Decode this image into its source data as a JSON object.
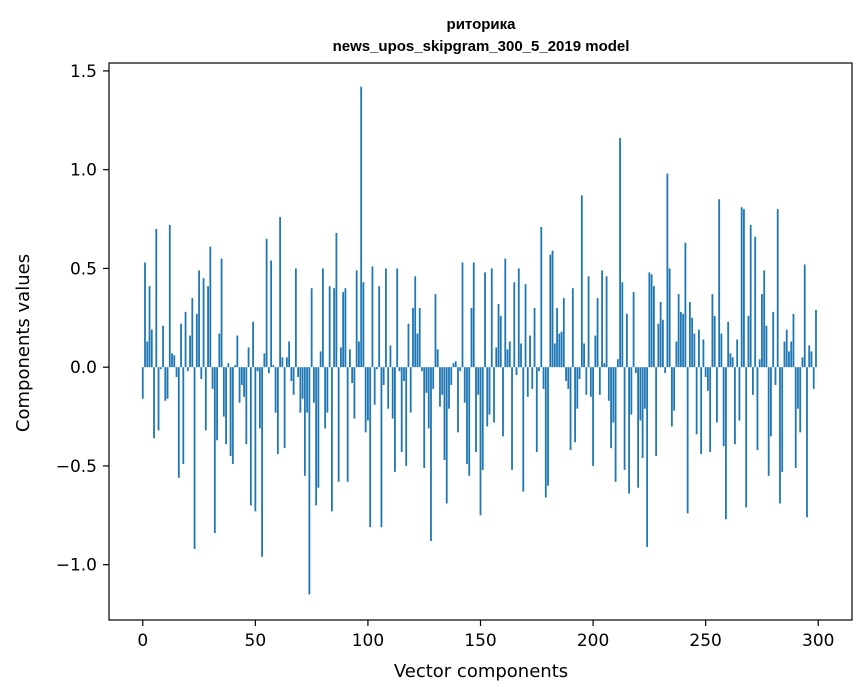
{
  "chart_data": {
    "type": "bar",
    "title": "риторика",
    "subtitle": "news_upos_skipgram_300_5_2019 model",
    "xlabel": "Vector components",
    "ylabel": "Components values",
    "xlim": [
      -15,
      315
    ],
    "ylim": [
      -1.28,
      1.54
    ],
    "xticks": [
      0,
      50,
      100,
      150,
      200,
      250,
      300
    ],
    "xtick_labels": [
      "0",
      "50",
      "100",
      "150",
      "200",
      "250",
      "300"
    ],
    "yticks": [
      -1.0,
      -0.5,
      0.0,
      0.5,
      1.0,
      1.5
    ],
    "ytick_labels": [
      "−1.0",
      "−0.5",
      "0.0",
      "0.5",
      "1.0",
      "1.5"
    ],
    "bar_color": "#1f77b4",
    "grid": false,
    "values": [
      -0.16,
      0.53,
      0.13,
      0.41,
      0.19,
      -0.36,
      0.7,
      -0.32,
      -0.01,
      0.21,
      -0.17,
      -0.16,
      0.72,
      0.07,
      0.06,
      -0.05,
      -0.56,
      0.22,
      -0.49,
      0.28,
      -0.02,
      0.16,
      0.35,
      -0.92,
      0.27,
      0.49,
      -0.06,
      0.45,
      -0.32,
      0.41,
      0.61,
      -0.11,
      -0.84,
      -0.37,
      0.17,
      0.55,
      -0.25,
      -0.39,
      0.02,
      -0.45,
      -0.49,
      0.01,
      0.16,
      -0.18,
      -0.09,
      -0.15,
      -0.39,
      0.1,
      -0.7,
      0.23,
      -0.73,
      -0.02,
      -0.31,
      -0.96,
      0.07,
      0.65,
      -0.03,
      0.54,
      0.01,
      -0.23,
      -0.44,
      0.76,
      0.05,
      -0.41,
      0.05,
      0.13,
      -0.07,
      -0.14,
      0.5,
      -0.05,
      -0.23,
      -0.16,
      -0.55,
      -0.23,
      -1.15,
      0.4,
      -0.18,
      -0.7,
      -0.61,
      0.08,
      0.5,
      -0.31,
      -0.23,
      0.41,
      -0.73,
      0.4,
      0.68,
      -0.58,
      0.1,
      0.38,
      0.4,
      -0.58,
      0.09,
      -0.08,
      -0.26,
      0.49,
      0.13,
      1.42,
      0.43,
      -0.33,
      -0.27,
      -0.81,
      0.51,
      -0.19,
      -0.01,
      0.41,
      -0.81,
      -0.09,
      0.5,
      -0.21,
      0.11,
      -0.26,
      -0.53,
      0.5,
      -0.02,
      -0.43,
      -0.07,
      -0.5,
      0.22,
      -0.23,
      0.3,
      0.46,
      0.17,
      0.3,
      -0.02,
      -0.51,
      -0.13,
      -0.31,
      -0.88,
      -0.11,
      0.37,
      0.09,
      -0.2,
      -0.14,
      -0.47,
      -0.69,
      -0.21,
      -0.09,
      0.02,
      0.03,
      -0.33,
      -0.02,
      0.53,
      -0.18,
      -0.49,
      -0.55,
      0.3,
      0.53,
      -0.43,
      -0.14,
      -0.75,
      -0.52,
      0.48,
      -0.3,
      -0.24,
      0.5,
      -0.28,
      0.1,
      0.32,
      0.26,
      -0.35,
      0.55,
      0.09,
      0.13,
      -0.52,
      0.43,
      -0.04,
      0.5,
      0.12,
      -0.63,
      0.42,
      -0.15,
      0.16,
      -0.11,
      0.3,
      -0.43,
      -0.02,
      0.71,
      -0.11,
      -0.66,
      -0.6,
      0.57,
      0.59,
      0.12,
      0.3,
      0.17,
      0.18,
      0.35,
      -0.07,
      -0.11,
      -0.42,
      0.4,
      -0.38,
      -0.21,
      -0.06,
      0.87,
      0.12,
      -0.14,
      0.46,
      -0.15,
      -0.5,
      0.16,
      0.35,
      -0.14,
      0.49,
      0.02,
      0.46,
      -0.17,
      -0.41,
      -0.28,
      -0.58,
      0.04,
      1.16,
      0.43,
      -0.52,
      0.27,
      -0.64,
      -0.24,
      0.38,
      -0.03,
      -0.61,
      -0.27,
      -0.46,
      -0.21,
      -0.91,
      0.48,
      0.47,
      0.41,
      -0.45,
      0.22,
      0.33,
      0.24,
      -0.03,
      0.98,
      0.5,
      -0.3,
      -0.22,
      0.13,
      0.37,
      0.28,
      0.27,
      0.63,
      -0.74,
      0.33,
      0.25,
      0.17,
      -0.34,
      0.19,
      -0.44,
      0.14,
      -0.05,
      -0.12,
      -0.43,
      0.37,
      0.26,
      -0.28,
      0.85,
      0.17,
      -0.4,
      -0.77,
      0.23,
      0.07,
      0.05,
      -0.39,
      0.14,
      -0.27,
      0.81,
      0.8,
      -0.71,
      0.26,
      0.72,
      -0.14,
      0.66,
      -0.42,
      0.04,
      0.37,
      0.49,
      0.21,
      -0.55,
      -0.35,
      0.28,
      -0.09,
      0.8,
      -0.69,
      -0.53,
      0.13,
      0.19,
      0.08,
      0.13,
      0.27,
      -0.51,
      -0.21,
      -0.33,
      0.05,
      0.52,
      -0.76,
      0.11,
      0.08,
      -0.11,
      0.29
    ]
  }
}
